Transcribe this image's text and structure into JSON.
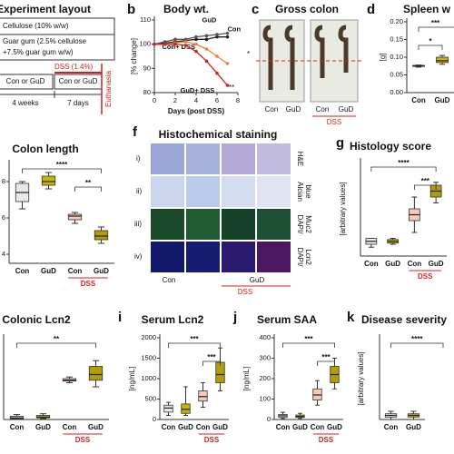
{
  "panel_letters": [
    "b",
    "c",
    "d",
    "f",
    "g",
    "i",
    "j",
    "k"
  ],
  "experiment_layout": {
    "title": "Experiment layout",
    "cellulose": "Cellulose (10% w/w)",
    "guar_gum": [
      "Guar gum (2.5% cellulose",
      "+7.5% guar gum w/w)"
    ],
    "dss": "DSS (1.4%)",
    "diet_1": "Con or GuD",
    "diet_2": "Con or GuD",
    "period_1": "4 weeks",
    "period_2": "7 days",
    "end": "Euthanasia"
  },
  "gross_colon": {
    "title": "Gross colon",
    "labels": [
      "Con",
      "GuD",
      "Con",
      "GuD"
    ],
    "group_label": "DSS"
  },
  "histochemical_staining": {
    "title": "Histochemical staining",
    "rows": [
      "i)",
      "ii)",
      "iii)",
      "iv)"
    ],
    "stains": [
      [
        "H&E"
      ],
      [
        "Alcian",
        "blue"
      ],
      [
        "DAPI/",
        "Muc2"
      ],
      [
        "DAPI/",
        "Lcn2"
      ]
    ],
    "labels": [
      "Con",
      "GuD"
    ],
    "group_label": "DSS"
  },
  "chart_data": [
    {
      "type": "line",
      "title": "Body wt.",
      "ylabel": "[% change]",
      "xlabel": "Days (post DSS)",
      "x": [
        0,
        1,
        2,
        3,
        4,
        5,
        6,
        7
      ],
      "xlim": [
        0,
        8
      ],
      "xticks": [
        0,
        2,
        4,
        6,
        8
      ],
      "ylim": [
        80,
        110
      ],
      "yticks": [
        80,
        90,
        100,
        110
      ],
      "series": [
        {
          "name": "Con",
          "color": "#222222",
          "values": [
            100,
            100.5,
            101,
            101.5,
            102,
            102,
            103,
            103
          ]
        },
        {
          "name": "GuD",
          "color": "#555555",
          "values": [
            100,
            101,
            102,
            102,
            103,
            103.5,
            104,
            104.5
          ]
        },
        {
          "name": "Con+ DSS",
          "color": "#f07d3c",
          "values": [
            100,
            100,
            100.5,
            101,
            100,
            98,
            95,
            92
          ]
        },
        {
          "name": "GuD+ DSS",
          "color": "#d0201c",
          "values": [
            100,
            100,
            100,
            99.5,
            97,
            93,
            88,
            83
          ]
        }
      ],
      "annotations": [
        "*",
        "**"
      ]
    },
    {
      "type": "box",
      "title": "Spleen w",
      "ylabel": "[g]",
      "categories": [
        "Con",
        "GuD"
      ],
      "colors": [
        "#e8e8e8",
        "#c9b400"
      ],
      "boxes": [
        [
          0.072,
          0.074,
          0.075,
          0.077,
          0.078
        ],
        [
          0.08,
          0.085,
          0.09,
          0.1,
          0.105
        ]
      ],
      "ylim": [
        0,
        0.2
      ],
      "yticks": [
        {
          "value": 0,
          "label": "0.00"
        },
        {
          "value": 0.05,
          "label": "0.05"
        },
        {
          "value": 0.1,
          "label": "0.10"
        },
        {
          "value": 0.15,
          "label": "0.15"
        },
        {
          "value": 0.2,
          "label": "0.20"
        }
      ],
      "annotations": [
        "***",
        "*"
      ]
    },
    {
      "type": "box",
      "title": "Colon length",
      "categories": [
        "Con",
        "GuD",
        "Con",
        "GuD"
      ],
      "group_label": "DSS",
      "colors": [
        "#e8e8e8",
        "#c9b400",
        "#f6c9b8",
        "#b39d00"
      ],
      "boxes": [
        [
          6.5,
          6.9,
          7.4,
          7.9,
          8.0
        ],
        [
          7.6,
          7.8,
          8.0,
          8.3,
          8.5
        ],
        [
          5.7,
          5.9,
          6.1,
          6.2,
          6.3
        ],
        [
          4.6,
          4.8,
          5.0,
          5.3,
          5.5
        ]
      ],
      "ylim": [
        3.5,
        9
      ],
      "yticks": [
        4,
        6,
        8
      ],
      "annotations": [
        "****",
        "**"
      ]
    },
    {
      "type": "box",
      "title": "Histology score",
      "ylabel": "[arbitrary values]",
      "categories": [
        "Con",
        "GuD",
        "Con",
        "GuD"
      ],
      "group_label": "DSS",
      "colors": [
        "#e8e8e8",
        "#c9b400",
        "#f6c9b8",
        "#b39d00"
      ],
      "boxes": [
        [
          1.5,
          2,
          2.5,
          3,
          3
        ],
        [
          2,
          2.2,
          2.5,
          2.8,
          3
        ],
        [
          4,
          6,
          7,
          8,
          10
        ],
        [
          9,
          10,
          11,
          12,
          12.5
        ]
      ],
      "ylim": [
        0,
        16
      ],
      "annotations": [
        "****",
        "***"
      ]
    },
    {
      "type": "box",
      "title": "Colonic Lcn2",
      "categories": [
        "Con",
        "GuD",
        "Con",
        "GuD"
      ],
      "group_label": "DSS",
      "colors": [
        "#e8e8e8",
        "#c9b400",
        "#f6c9b8",
        "#b39d00"
      ],
      "boxes": [
        [
          0,
          1,
          2,
          4,
          6
        ],
        [
          1,
          2,
          3,
          5,
          7
        ],
        [
          45,
          47,
          48,
          50,
          52
        ],
        [
          40,
          48,
          55,
          65,
          72
        ]
      ],
      "ylim": [
        0,
        100
      ],
      "annotations": [
        "**"
      ]
    },
    {
      "type": "box",
      "title": "Serum Lcn2",
      "ylabel": "[ng/mL]",
      "categories": [
        "Con",
        "GuD",
        "Con",
        "GuD"
      ],
      "group_label": "DSS",
      "colors": [
        "#e8e8e8",
        "#c9b400",
        "#f6c9b8",
        "#b39d00"
      ],
      "boxes": [
        [
          100,
          180,
          280,
          350,
          420
        ],
        [
          100,
          150,
          250,
          380,
          800
        ],
        [
          300,
          450,
          560,
          700,
          900
        ],
        [
          700,
          900,
          1100,
          1400,
          1750
        ]
      ],
      "ylim": [
        0,
        2000
      ],
      "yticks": [
        0,
        500,
        1000,
        1500,
        2000
      ],
      "annotations": [
        "***",
        "***"
      ]
    },
    {
      "type": "box",
      "title": "Serum SAA",
      "ylabel": "[ng/mL]",
      "categories": [
        "Con",
        "GuD",
        "Con",
        "GuD"
      ],
      "group_label": "DSS",
      "colors": [
        "#e8e8e8",
        "#c9b400",
        "#f6c9b8",
        "#b39d00"
      ],
      "boxes": [
        [
          5,
          10,
          18,
          25,
          35
        ],
        [
          5,
          10,
          15,
          22,
          30
        ],
        [
          70,
          95,
          120,
          150,
          190
        ],
        [
          150,
          180,
          220,
          260,
          300
        ]
      ],
      "ylim": [
        0,
        400
      ],
      "yticks": [
        0,
        100,
        200,
        300,
        400
      ],
      "annotations": [
        "***",
        "***"
      ]
    },
    {
      "type": "box",
      "title": "Disease severity",
      "ylabel": "[arbitrary values]",
      "categories": [
        "Con",
        "GuD"
      ],
      "colors": [
        "#e8e8e8",
        "#c9b400"
      ],
      "boxes": [
        [
          0,
          0.3,
          0.5,
          0.7,
          1
        ],
        [
          0,
          0.3,
          0.5,
          0.7,
          1
        ]
      ],
      "ylim": [
        0,
        10
      ],
      "annotations": [
        "****"
      ]
    }
  ]
}
